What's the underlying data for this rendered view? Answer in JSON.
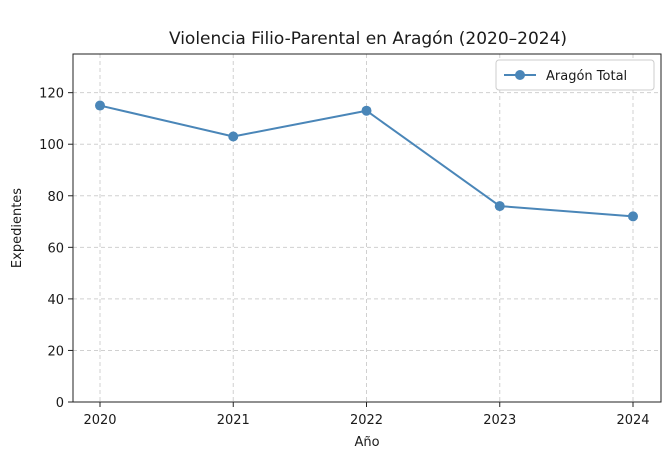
{
  "chart_data": {
    "type": "line",
    "title": "Violencia Filio-Parental en Aragón (2020–2024)",
    "xlabel": "Año",
    "ylabel": "Expedientes",
    "categories": [
      "2020",
      "2021",
      "2022",
      "2023",
      "2024"
    ],
    "series": [
      {
        "name": "Aragón Total",
        "values": [
          115,
          103,
          113,
          76,
          72
        ],
        "color": "#4a86b8",
        "marker": "circle"
      }
    ],
    "ylim": [
      0,
      135
    ],
    "yticks": [
      0,
      20,
      40,
      60,
      80,
      100,
      120
    ],
    "grid": true,
    "grid_style": "dashed",
    "legend_position": "top-right"
  }
}
